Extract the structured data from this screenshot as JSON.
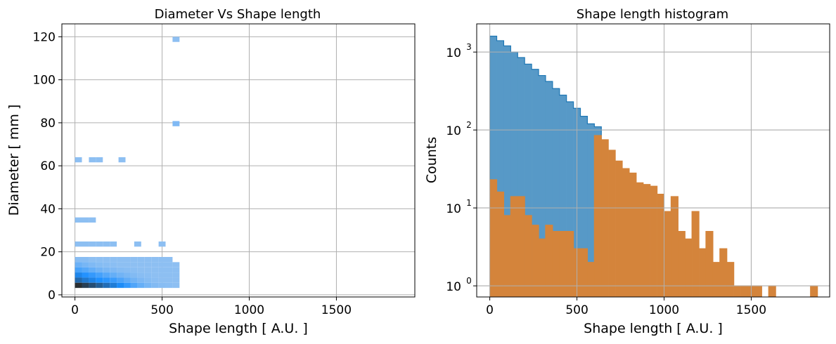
{
  "chart_data": [
    {
      "type": "heatmap",
      "title": "Diameter Vs Shape length",
      "xlabel": "Shape length [ A.U. ]",
      "ylabel": "Diameter [ mm ]",
      "xlim": [
        -75,
        1950
      ],
      "ylim": [
        -1,
        126
      ],
      "xticks": [
        0,
        500,
        1000,
        1500
      ],
      "yticks": [
        0,
        20,
        40,
        60,
        80,
        100,
        120
      ],
      "grid": true,
      "bin_width_x": 40,
      "bin_height_y": 2.4,
      "cmap": [
        "#a9cbef",
        "#1e90ff",
        "#2a2f33"
      ],
      "bins": [
        {
          "x": 560,
          "y": 117.6,
          "v": 0.1
        },
        {
          "x": 560,
          "y": 78.4,
          "v": 0.15
        },
        {
          "x": 0,
          "y": 61.6,
          "v": 0.1
        },
        {
          "x": 80,
          "y": 61.6,
          "v": 0.1
        },
        {
          "x": 120,
          "y": 61.6,
          "v": 0.1
        },
        {
          "x": 250,
          "y": 61.6,
          "v": 0.1
        },
        {
          "x": 0,
          "y": 33.6,
          "v": 0.1
        },
        {
          "x": 40,
          "y": 33.6,
          "v": 0.1
        },
        {
          "x": 80,
          "y": 33.6,
          "v": 0.1
        },
        {
          "x": 0,
          "y": 22.4,
          "v": 0.1
        },
        {
          "x": 40,
          "y": 22.4,
          "v": 0.1
        },
        {
          "x": 80,
          "y": 22.4,
          "v": 0.1
        },
        {
          "x": 120,
          "y": 22.4,
          "v": 0.1
        },
        {
          "x": 160,
          "y": 22.4,
          "v": 0.1
        },
        {
          "x": 200,
          "y": 22.4,
          "v": 0.1
        },
        {
          "x": 340,
          "y": 22.4,
          "v": 0.1
        },
        {
          "x": 480,
          "y": 22.4,
          "v": 0.1
        },
        {
          "x": 0,
          "y": 15.2,
          "v": 0.12
        },
        {
          "x": 40,
          "y": 15.2,
          "v": 0.12
        },
        {
          "x": 80,
          "y": 15.2,
          "v": 0.1
        },
        {
          "x": 120,
          "y": 15.2,
          "v": 0.1
        },
        {
          "x": 160,
          "y": 15.2,
          "v": 0.1
        },
        {
          "x": 200,
          "y": 15.2,
          "v": 0.1
        },
        {
          "x": 240,
          "y": 15.2,
          "v": 0.1
        },
        {
          "x": 280,
          "y": 15.2,
          "v": 0.1
        },
        {
          "x": 320,
          "y": 15.2,
          "v": 0.1
        },
        {
          "x": 360,
          "y": 15.2,
          "v": 0.1
        },
        {
          "x": 400,
          "y": 15.2,
          "v": 0.1
        },
        {
          "x": 440,
          "y": 15.2,
          "v": 0.1
        },
        {
          "x": 480,
          "y": 15.2,
          "v": 0.1
        },
        {
          "x": 520,
          "y": 15.2,
          "v": 0.1
        },
        {
          "x": 0,
          "y": 12.8,
          "v": 0.22
        },
        {
          "x": 40,
          "y": 12.8,
          "v": 0.18
        },
        {
          "x": 80,
          "y": 12.8,
          "v": 0.15
        },
        {
          "x": 120,
          "y": 12.8,
          "v": 0.13
        },
        {
          "x": 160,
          "y": 12.8,
          "v": 0.12
        },
        {
          "x": 200,
          "y": 12.8,
          "v": 0.11
        },
        {
          "x": 240,
          "y": 12.8,
          "v": 0.1
        },
        {
          "x": 280,
          "y": 12.8,
          "v": 0.1
        },
        {
          "x": 320,
          "y": 12.8,
          "v": 0.1
        },
        {
          "x": 360,
          "y": 12.8,
          "v": 0.1
        },
        {
          "x": 400,
          "y": 12.8,
          "v": 0.1
        },
        {
          "x": 440,
          "y": 12.8,
          "v": 0.1
        },
        {
          "x": 480,
          "y": 12.8,
          "v": 0.1
        },
        {
          "x": 520,
          "y": 12.8,
          "v": 0.1
        },
        {
          "x": 560,
          "y": 12.8,
          "v": 0.1
        },
        {
          "x": 0,
          "y": 10.4,
          "v": 0.35
        },
        {
          "x": 40,
          "y": 10.4,
          "v": 0.3
        },
        {
          "x": 80,
          "y": 10.4,
          "v": 0.25
        },
        {
          "x": 120,
          "y": 10.4,
          "v": 0.2
        },
        {
          "x": 160,
          "y": 10.4,
          "v": 0.17
        },
        {
          "x": 200,
          "y": 10.4,
          "v": 0.15
        },
        {
          "x": 240,
          "y": 10.4,
          "v": 0.13
        },
        {
          "x": 280,
          "y": 10.4,
          "v": 0.12
        },
        {
          "x": 320,
          "y": 10.4,
          "v": 0.11
        },
        {
          "x": 360,
          "y": 10.4,
          "v": 0.1
        },
        {
          "x": 400,
          "y": 10.4,
          "v": 0.1
        },
        {
          "x": 440,
          "y": 10.4,
          "v": 0.1
        },
        {
          "x": 480,
          "y": 10.4,
          "v": 0.1
        },
        {
          "x": 520,
          "y": 10.4,
          "v": 0.1
        },
        {
          "x": 560,
          "y": 10.4,
          "v": 0.1
        },
        {
          "x": 0,
          "y": 8.0,
          "v": 0.55
        },
        {
          "x": 40,
          "y": 8.0,
          "v": 0.48
        },
        {
          "x": 80,
          "y": 8.0,
          "v": 0.42
        },
        {
          "x": 120,
          "y": 8.0,
          "v": 0.36
        },
        {
          "x": 160,
          "y": 8.0,
          "v": 0.3
        },
        {
          "x": 200,
          "y": 8.0,
          "v": 0.25
        },
        {
          "x": 240,
          "y": 8.0,
          "v": 0.2
        },
        {
          "x": 280,
          "y": 8.0,
          "v": 0.17
        },
        {
          "x": 320,
          "y": 8.0,
          "v": 0.14
        },
        {
          "x": 360,
          "y": 8.0,
          "v": 0.12
        },
        {
          "x": 400,
          "y": 8.0,
          "v": 0.11
        },
        {
          "x": 440,
          "y": 8.0,
          "v": 0.1
        },
        {
          "x": 480,
          "y": 8.0,
          "v": 0.1
        },
        {
          "x": 520,
          "y": 8.0,
          "v": 0.1
        },
        {
          "x": 560,
          "y": 8.0,
          "v": 0.1
        },
        {
          "x": 0,
          "y": 5.6,
          "v": 0.7
        },
        {
          "x": 40,
          "y": 5.6,
          "v": 0.62
        },
        {
          "x": 80,
          "y": 5.6,
          "v": 0.56
        },
        {
          "x": 120,
          "y": 5.6,
          "v": 0.5
        },
        {
          "x": 160,
          "y": 5.6,
          "v": 0.45
        },
        {
          "x": 200,
          "y": 5.6,
          "v": 0.4
        },
        {
          "x": 240,
          "y": 5.6,
          "v": 0.33
        },
        {
          "x": 280,
          "y": 5.6,
          "v": 0.26
        },
        {
          "x": 320,
          "y": 5.6,
          "v": 0.2
        },
        {
          "x": 360,
          "y": 5.6,
          "v": 0.16
        },
        {
          "x": 400,
          "y": 5.6,
          "v": 0.13
        },
        {
          "x": 440,
          "y": 5.6,
          "v": 0.11
        },
        {
          "x": 480,
          "y": 5.6,
          "v": 0.1
        },
        {
          "x": 520,
          "y": 5.6,
          "v": 0.1
        },
        {
          "x": 560,
          "y": 5.6,
          "v": 0.1
        },
        {
          "x": 0,
          "y": 3.2,
          "v": 1.0
        },
        {
          "x": 40,
          "y": 3.2,
          "v": 0.92
        },
        {
          "x": 80,
          "y": 3.2,
          "v": 0.84
        },
        {
          "x": 120,
          "y": 3.2,
          "v": 0.76
        },
        {
          "x": 160,
          "y": 3.2,
          "v": 0.68
        },
        {
          "x": 200,
          "y": 3.2,
          "v": 0.6
        },
        {
          "x": 240,
          "y": 3.2,
          "v": 0.52
        },
        {
          "x": 280,
          "y": 3.2,
          "v": 0.42
        },
        {
          "x": 320,
          "y": 3.2,
          "v": 0.32
        },
        {
          "x": 360,
          "y": 3.2,
          "v": 0.24
        },
        {
          "x": 400,
          "y": 3.2,
          "v": 0.18
        },
        {
          "x": 440,
          "y": 3.2,
          "v": 0.14
        },
        {
          "x": 480,
          "y": 3.2,
          "v": 0.12
        },
        {
          "x": 520,
          "y": 3.2,
          "v": 0.11
        },
        {
          "x": 560,
          "y": 3.2,
          "v": 0.1
        }
      ]
    },
    {
      "type": "histogram",
      "title": "Shape length histogram",
      "xlabel": "Shape length [ A.U. ]",
      "ylabel": "Counts",
      "yscale": "log",
      "xlim": [
        -75,
        1950
      ],
      "ylim": [
        0.72,
        2300
      ],
      "xticks": [
        0,
        500,
        1000,
        1500
      ],
      "yticks": [
        1,
        10,
        100,
        1000
      ],
      "ytick_labels": [
        [
          "10",
          "0"
        ],
        [
          "10",
          "1"
        ],
        [
          "10",
          "2"
        ],
        [
          "10",
          "3"
        ]
      ],
      "grid": true,
      "bin_width": 40,
      "series": [
        {
          "color": "#5799c7",
          "edge": "#1f77b4",
          "bins": [
            {
              "x": 0,
              "c": 1600
            },
            {
              "x": 40,
              "c": 1400
            },
            {
              "x": 80,
              "c": 1200
            },
            {
              "x": 120,
              "c": 1000
            },
            {
              "x": 160,
              "c": 850
            },
            {
              "x": 200,
              "c": 700
            },
            {
              "x": 240,
              "c": 600
            },
            {
              "x": 280,
              "c": 500
            },
            {
              "x": 320,
              "c": 420
            },
            {
              "x": 360,
              "c": 340
            },
            {
              "x": 400,
              "c": 280
            },
            {
              "x": 440,
              "c": 230
            },
            {
              "x": 480,
              "c": 190
            },
            {
              "x": 520,
              "c": 150
            },
            {
              "x": 560,
              "c": 120
            },
            {
              "x": 600,
              "c": 110
            }
          ]
        },
        {
          "color": "#d4843b",
          "edge": "#d4843b",
          "bins": [
            {
              "x": 0,
              "c": 23
            },
            {
              "x": 40,
              "c": 16
            },
            {
              "x": 80,
              "c": 8
            },
            {
              "x": 120,
              "c": 14
            },
            {
              "x": 160,
              "c": 14
            },
            {
              "x": 200,
              "c": 8
            },
            {
              "x": 240,
              "c": 6
            },
            {
              "x": 280,
              "c": 4
            },
            {
              "x": 320,
              "c": 6
            },
            {
              "x": 360,
              "c": 5
            },
            {
              "x": 400,
              "c": 5
            },
            {
              "x": 440,
              "c": 5
            },
            {
              "x": 480,
              "c": 3
            },
            {
              "x": 520,
              "c": 3
            },
            {
              "x": 560,
              "c": 2
            },
            {
              "x": 600,
              "c": 85
            },
            {
              "x": 640,
              "c": 75
            },
            {
              "x": 680,
              "c": 55
            },
            {
              "x": 720,
              "c": 40
            },
            {
              "x": 760,
              "c": 32
            },
            {
              "x": 800,
              "c": 28
            },
            {
              "x": 840,
              "c": 21
            },
            {
              "x": 880,
              "c": 20
            },
            {
              "x": 920,
              "c": 19
            },
            {
              "x": 960,
              "c": 15
            },
            {
              "x": 1000,
              "c": 9
            },
            {
              "x": 1040,
              "c": 14
            },
            {
              "x": 1080,
              "c": 5
            },
            {
              "x": 1120,
              "c": 4
            },
            {
              "x": 1160,
              "c": 9
            },
            {
              "x": 1200,
              "c": 3
            },
            {
              "x": 1240,
              "c": 5
            },
            {
              "x": 1280,
              "c": 2
            },
            {
              "x": 1320,
              "c": 3
            },
            {
              "x": 1360,
              "c": 2
            },
            {
              "x": 1400,
              "c": 1
            },
            {
              "x": 1440,
              "c": 1
            },
            {
              "x": 1480,
              "c": 1
            },
            {
              "x": 1520,
              "c": 1
            },
            {
              "x": 1600,
              "c": 1
            },
            {
              "x": 1840,
              "c": 1
            }
          ]
        }
      ]
    }
  ]
}
